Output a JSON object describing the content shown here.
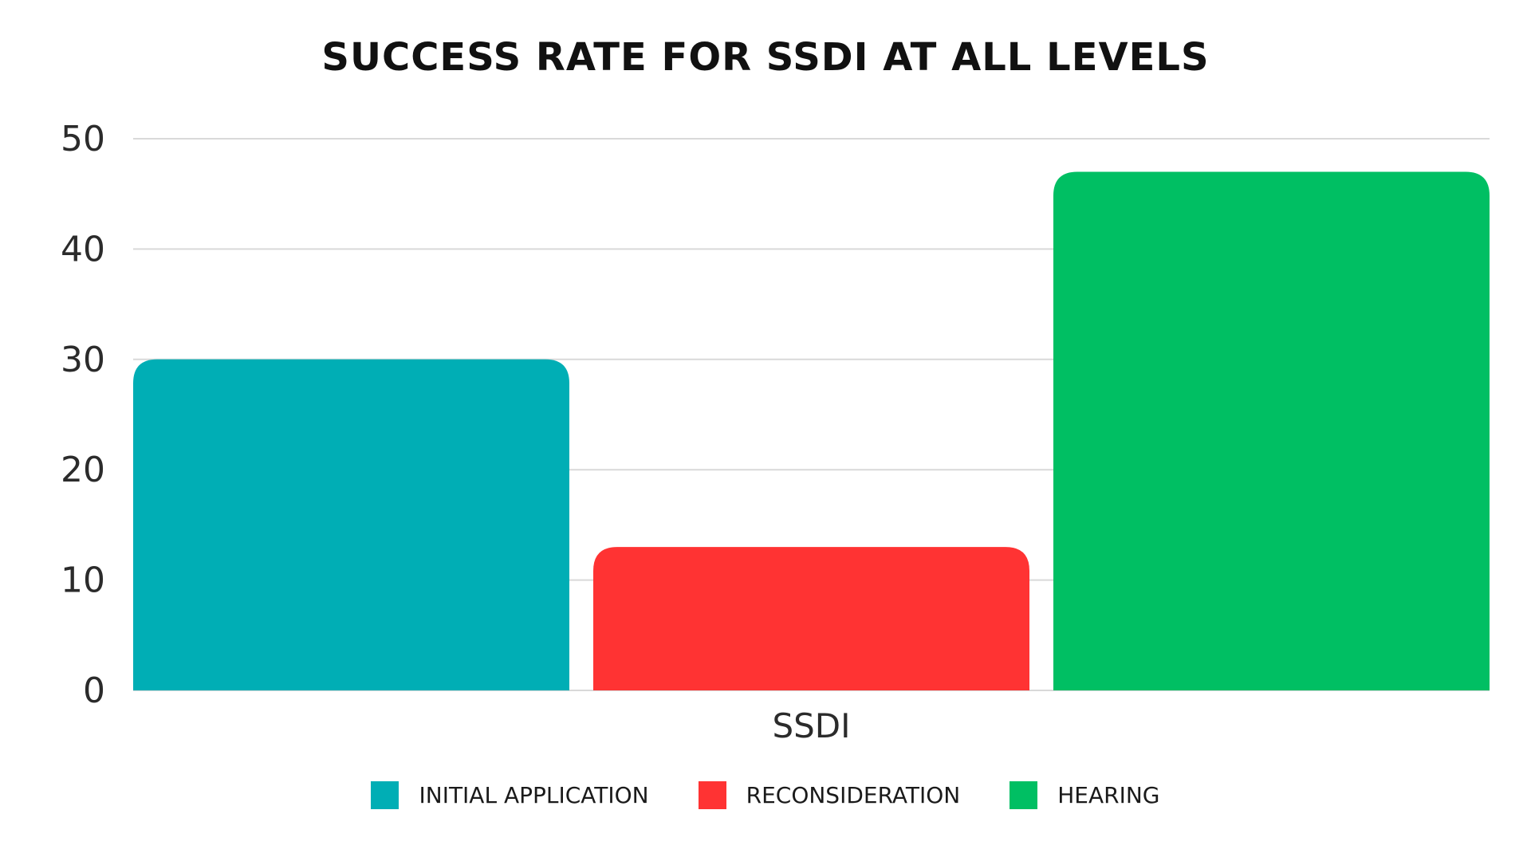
{
  "chart_data": {
    "type": "bar",
    "title": "SUCCESS RATE FOR SSDI AT ALL LEVELS",
    "categories": [
      "SSDI"
    ],
    "series": [
      {
        "name": "INITIAL APPLICATION",
        "values": [
          30
        ],
        "color": "#00AEB5"
      },
      {
        "name": "RECONSIDERATION",
        "values": [
          13
        ],
        "color": "#FF3333"
      },
      {
        "name": "HEARING",
        "values": [
          47
        ],
        "color": "#00BF63"
      }
    ],
    "xlabel": "",
    "ylabel": "",
    "ylim": [
      0,
      50
    ],
    "yticks": [
      "0",
      "10",
      "20",
      "30",
      "40",
      "50"
    ],
    "grid": true,
    "legend_position": "bottom"
  }
}
